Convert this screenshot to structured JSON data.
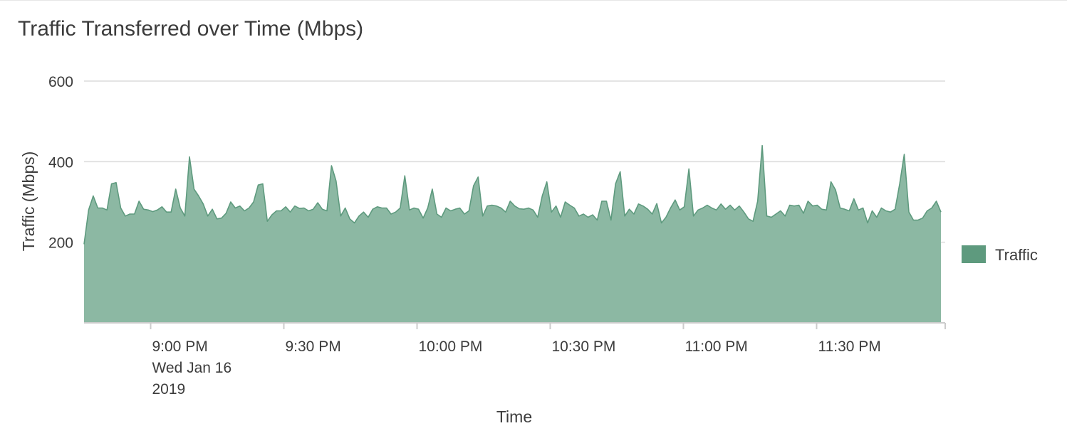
{
  "panel": {
    "title": "Traffic Transferred over Time (Mbps)"
  },
  "chart_data": {
    "type": "area",
    "xlabel": "Time",
    "ylabel": "Traffic (Mbps)",
    "ylim": [
      0,
      600
    ],
    "y_ticks": [
      200,
      400,
      600
    ],
    "grid": true,
    "legend_position": "right",
    "x_start": "8:45 PM",
    "x_end": "11:58 PM",
    "x_ticks": [
      {
        "time": "9:00 PM",
        "label": [
          "9:00 PM",
          "Wed Jan 16",
          "2019"
        ]
      },
      {
        "time": "9:30 PM",
        "label": [
          "9:30 PM"
        ]
      },
      {
        "time": "10:00 PM",
        "label": [
          "10:00 PM"
        ]
      },
      {
        "time": "10:30 PM",
        "label": [
          "10:30 PM"
        ]
      },
      {
        "time": "11:00 PM",
        "label": [
          "11:00 PM"
        ]
      },
      {
        "time": "11:30 PM",
        "label": [
          "11:30 PM"
        ]
      }
    ],
    "colors": {
      "fill": "#8cb8a3",
      "line": "#5e9a7e",
      "legend": "#5e9a7e",
      "grid": "#dcdcdc",
      "axis": "#cccccc"
    },
    "series": [
      {
        "name": "Traffic",
        "values": [
          195,
          280,
          315,
          285,
          285,
          280,
          345,
          348,
          285,
          265,
          270,
          270,
          302,
          282,
          280,
          276,
          280,
          288,
          275,
          275,
          332,
          285,
          265,
          412,
          332,
          315,
          295,
          265,
          282,
          258,
          260,
          272,
          300,
          285,
          290,
          278,
          285,
          300,
          342,
          345,
          252,
          268,
          278,
          278,
          288,
          275,
          290,
          284,
          285,
          278,
          282,
          298,
          282,
          278,
          390,
          352,
          265,
          285,
          258,
          248,
          265,
          275,
          262,
          282,
          288,
          285,
          285,
          270,
          275,
          285,
          365,
          280,
          285,
          282,
          260,
          285,
          332,
          270,
          262,
          285,
          278,
          282,
          285,
          270,
          278,
          340,
          362,
          265,
          290,
          292,
          290,
          285,
          275,
          302,
          290,
          283,
          282,
          285,
          280,
          262,
          315,
          350,
          275,
          290,
          262,
          300,
          292,
          285,
          265,
          270,
          262,
          268,
          255,
          302,
          302,
          255,
          345,
          375,
          265,
          282,
          270,
          295,
          290,
          282,
          270,
          296,
          248,
          262,
          285,
          305,
          280,
          288,
          382,
          265,
          280,
          285,
          292,
          285,
          280,
          295,
          282,
          292,
          280,
          290,
          275,
          258,
          252,
          302,
          440,
          265,
          262,
          270,
          278,
          265,
          292,
          290,
          292,
          272,
          302,
          290,
          292,
          282,
          280,
          350,
          330,
          285,
          282,
          278,
          308,
          280,
          285,
          248,
          278,
          262,
          285,
          278,
          275,
          282,
          345,
          418,
          275,
          255,
          255,
          260,
          278,
          285,
          302,
          275
        ]
      }
    ]
  }
}
